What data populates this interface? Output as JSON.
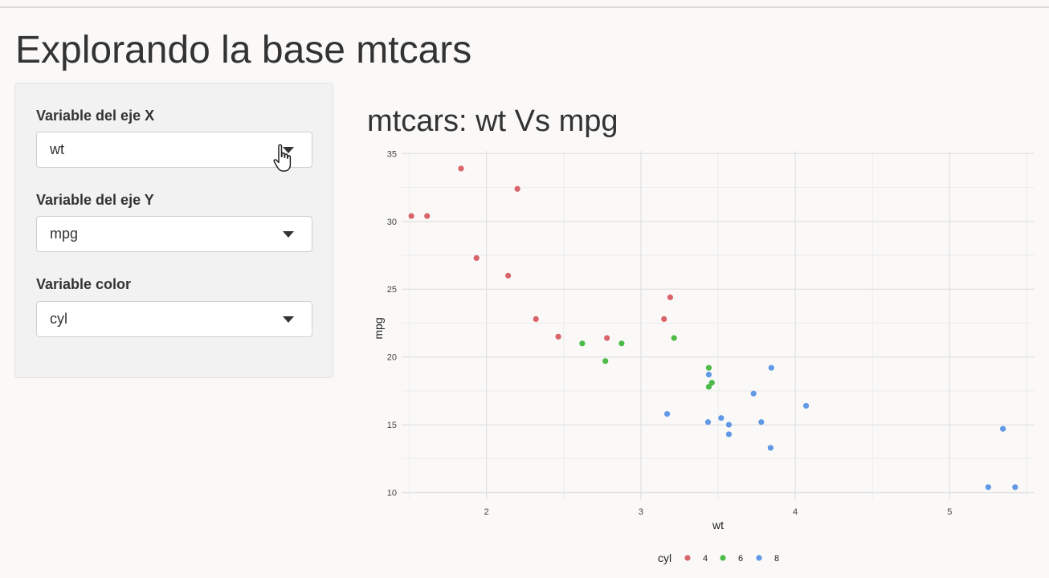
{
  "page": {
    "title": "Explorando la base mtcars"
  },
  "controls": [
    {
      "label": "Variable del eje X",
      "value": "wt"
    },
    {
      "label": "Variable del eje Y",
      "value": "mpg"
    },
    {
      "label": "Variable color",
      "value": "cyl"
    }
  ],
  "plot": {
    "title": "mtcars: wt Vs mpg"
  },
  "icons": {
    "cursor": "hand-pointer-icon",
    "caret": "caret-down-icon"
  },
  "chart_data": {
    "type": "scatter",
    "xlabel": "wt",
    "ylabel": "mpg",
    "xlim": [
      1.45,
      5.55
    ],
    "ylim": [
      9.5,
      35.2
    ],
    "x_ticks": [
      2,
      3,
      4,
      5
    ],
    "y_ticks": [
      10,
      15,
      20,
      25,
      30,
      35
    ],
    "grid": true,
    "legend": {
      "title": "cyl",
      "placement": "bottom"
    },
    "series": [
      {
        "name": "4",
        "color": "#d9646a",
        "points": [
          [
            2.32,
            22.8
          ],
          [
            3.19,
            24.4
          ],
          [
            3.15,
            22.8
          ],
          [
            2.2,
            32.4
          ],
          [
            1.615,
            30.4
          ],
          [
            1.835,
            33.9
          ],
          [
            2.465,
            21.5
          ],
          [
            1.935,
            27.3
          ],
          [
            2.14,
            26.0
          ],
          [
            1.513,
            30.4
          ],
          [
            2.78,
            21.4
          ]
        ]
      },
      {
        "name": "6",
        "color": "#4cbb47",
        "points": [
          [
            2.62,
            21.0
          ],
          [
            2.875,
            21.0
          ],
          [
            3.215,
            21.4
          ],
          [
            3.46,
            18.1
          ],
          [
            3.44,
            19.2
          ],
          [
            3.44,
            17.8
          ],
          [
            2.77,
            19.7
          ]
        ]
      },
      {
        "name": "8",
        "color": "#6199e6",
        "points": [
          [
            3.44,
            18.7
          ],
          [
            3.57,
            14.3
          ],
          [
            4.07,
            16.4
          ],
          [
            3.73,
            17.3
          ],
          [
            3.78,
            15.2
          ],
          [
            5.25,
            10.4
          ],
          [
            5.424,
            10.4
          ],
          [
            5.345,
            14.7
          ],
          [
            3.52,
            15.5
          ],
          [
            3.435,
            15.2
          ],
          [
            3.84,
            13.3
          ],
          [
            3.845,
            19.2
          ],
          [
            3.17,
            15.8
          ],
          [
            3.57,
            15.0
          ]
        ]
      }
    ]
  }
}
